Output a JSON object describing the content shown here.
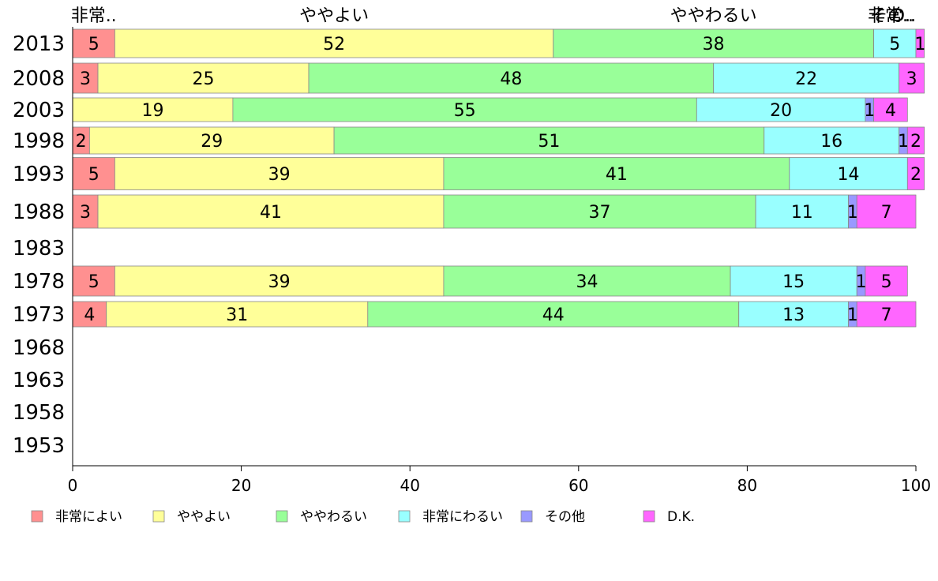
{
  "chart_data": {
    "type": "bar",
    "orientation": "horizontal",
    "stacked": true,
    "categories": [
      "2013",
      "2008",
      "2003",
      "1998",
      "1993",
      "1988",
      "1983",
      "1978",
      "1973",
      "1968",
      "1963",
      "1958",
      "1953"
    ],
    "series": [
      {
        "name": "非常によい",
        "color": "#ff9090",
        "values": [
          5,
          3,
          0,
          2,
          5,
          3,
          null,
          5,
          4,
          null,
          null,
          null,
          null
        ]
      },
      {
        "name": "ややよい",
        "color": "#ffff99",
        "values": [
          52,
          25,
          19,
          29,
          39,
          41,
          null,
          39,
          31,
          null,
          null,
          null,
          null
        ]
      },
      {
        "name": "ややわるい",
        "color": "#99ff99",
        "values": [
          38,
          48,
          55,
          51,
          41,
          37,
          null,
          34,
          44,
          null,
          null,
          null,
          null
        ]
      },
      {
        "name": "非常にわるい",
        "color": "#99ffff",
        "values": [
          5,
          22,
          20,
          16,
          14,
          11,
          null,
          15,
          13,
          null,
          null,
          null,
          null
        ]
      },
      {
        "name": "その他",
        "color": "#9999ff",
        "values": [
          0,
          0,
          1,
          1,
          0,
          1,
          null,
          1,
          1,
          null,
          null,
          null,
          null
        ]
      },
      {
        "name": "D.K.",
        "color": "#ff66ff",
        "values": [
          1,
          3,
          4,
          2,
          2,
          7,
          null,
          5,
          7,
          null,
          null,
          null,
          null
        ]
      }
    ],
    "top_labels": [
      "非常..",
      "ややよい",
      "ややわるい",
      "非常..",
      "その..",
      "D.."
    ],
    "xlim": [
      0,
      100
    ],
    "xticks": [
      "0",
      "20",
      "40",
      "60",
      "80",
      "100"
    ],
    "grid": false,
    "legend_position": "bottom"
  }
}
